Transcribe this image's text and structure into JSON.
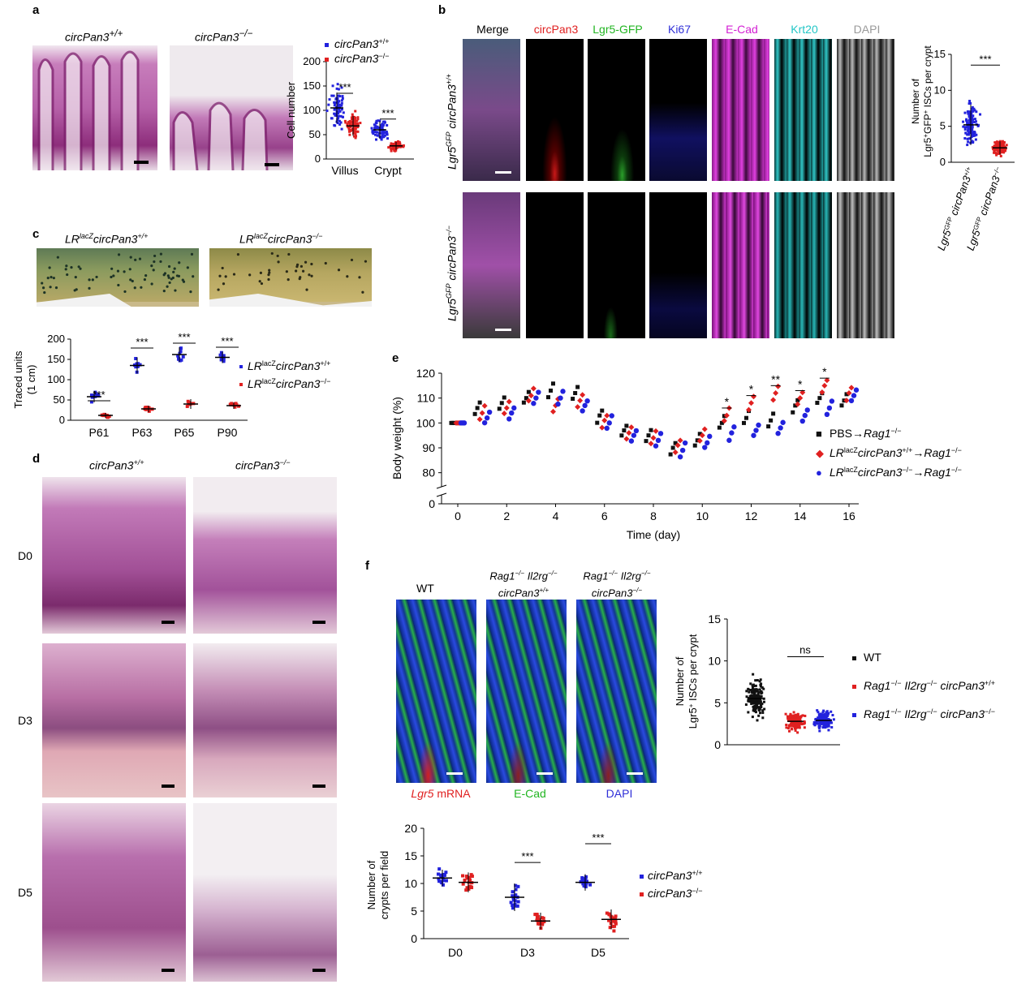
{
  "panels": {
    "a": {
      "label": "a",
      "genotype_wt": "circPan3",
      "genotype_wt_sup": "+/+",
      "genotype_ko": "circPan3",
      "genotype_ko_sup": "−/−"
    },
    "b": {
      "label": "b",
      "channels": [
        "Merge",
        "circPan3",
        "Lgr5-GFP",
        "Ki67",
        "E-Cad",
        "Krt20",
        "DAPI"
      ],
      "channel_colors": [
        "#000000",
        "#e02020",
        "#21b521",
        "#2f2fd8",
        "#d41fd4",
        "#23c6c6",
        "#9a9a9a"
      ],
      "row_wt": "Lgr5GFP circPan3+/+",
      "row_ko": "Lgr5GFP circPan3−/−",
      "row_prefix": "Lgr5",
      "row_prefix_sup": "GFP",
      "row_gene": "circPan3",
      "row_wt_sup": "+/+",
      "row_ko_sup": "−/−"
    },
    "c": {
      "label": "c",
      "genotype_prefix": "LR",
      "genotype_prefix_sup": "lacZ",
      "genotype_gene": "circPan3",
      "wt_sup": "+/+",
      "ko_sup": "−/−"
    },
    "d": {
      "label": "d",
      "col_wt": "circPan3",
      "col_wt_sup": "+/+",
      "col_ko": "circPan3",
      "col_ko_sup": "−/−",
      "rows": [
        "D0",
        "D3",
        "D5"
      ]
    },
    "e": {
      "label": "e"
    },
    "f": {
      "label": "f",
      "columns": [
        {
          "line1": "WT",
          "line2": ""
        },
        {
          "line1": "Rag1−/− Il2rg−/−",
          "line2": "circPan3+/+"
        },
        {
          "line1": "Rag1−/− Il2rg−/−",
          "line2": "circPan3−/−"
        }
      ],
      "col1_line1_a": "Rag1",
      "col1_line1_a_sup": "−/−",
      "col1_line1_b": " Il2rg",
      "col1_line1_b_sup": "−/−",
      "col1_line2": "circPan3",
      "col1_line2_sup": "+/+",
      "col2_line2": "circPan3",
      "col2_line2_sup": "−/−",
      "wt_label": "WT",
      "legend_under": [
        {
          "text": "Lgr5 mRNA",
          "gene": "Lgr5",
          "rest": " mRNA",
          "color": "#e02020"
        },
        {
          "text": "E-Cad",
          "color": "#21b521"
        },
        {
          "text": "DAPI",
          "color": "#2f2fd8"
        }
      ]
    }
  },
  "chart_data": [
    {
      "id": "a-chart",
      "type": "scatter",
      "title": "",
      "xlabel": "",
      "ylabel": "Cell number",
      "categories": [
        "Villus",
        "Crypt"
      ],
      "ylim": [
        0,
        200
      ],
      "yticks": [
        0,
        50,
        100,
        150,
        200
      ],
      "series": [
        {
          "name": "circPan3+/+",
          "color": "#2222dd",
          "means": [
            105,
            60
          ]
        },
        {
          "name": "circPan3−/−",
          "color": "#e02020",
          "means": [
            68,
            27
          ]
        }
      ],
      "legend": [
        {
          "text": "circPan3",
          "sup": "+/+",
          "color": "#2222dd"
        },
        {
          "text": "circPan3",
          "sup": "−/−",
          "color": "#e02020"
        }
      ],
      "annotations": [
        "***",
        "***"
      ]
    },
    {
      "id": "b-chart",
      "type": "scatter",
      "ylabel_line1": "Number of",
      "ylabel_line2": "Lgr5+GFP+ ISCs per crypt",
      "ylabel_l2_a": "Lgr5",
      "ylabel_l2_a_sup": "+",
      "ylabel_l2_b": "GFP",
      "ylabel_l2_b_sup": "+",
      "ylabel_l2_c": " ISCs per crypt",
      "ylim": [
        0,
        15
      ],
      "yticks": [
        0,
        5,
        10,
        15
      ],
      "categories": [
        "Lgr5GFP circPan3+/+",
        "Lgr5GFP circPan3−/−"
      ],
      "cat_prefix": "Lgr5",
      "cat_prefix_sup": "GFP",
      "cat_gene": "circPan3",
      "cat_wt_sup": "+/+",
      "cat_ko_sup": "−/−",
      "series": [
        {
          "name": "circPan3+/+",
          "color": "#2222dd",
          "mean": 5.2,
          "sd": 2.8
        },
        {
          "name": "circPan3−/−",
          "color": "#e02020",
          "mean": 2.0,
          "sd": 0.9
        }
      ],
      "annotations": [
        "***"
      ]
    },
    {
      "id": "c-chart",
      "type": "scatter",
      "ylabel_line1": "Traced units",
      "ylabel_line2": "(1 cm)",
      "categories": [
        "P61",
        "P63",
        "P65",
        "P90"
      ],
      "ylim": [
        0,
        200
      ],
      "yticks": [
        0,
        50,
        100,
        150,
        200
      ],
      "series": [
        {
          "name": "LRlacZ circPan3+/+",
          "color": "#2222dd",
          "means": [
            58,
            135,
            162,
            155
          ],
          "sd": [
            14,
            20,
            18,
            14
          ]
        },
        {
          "name": "LRlacZ circPan3−/−",
          "color": "#e02020",
          "means": [
            12,
            28,
            40,
            36
          ],
          "sd": [
            6,
            8,
            12,
            8
          ]
        }
      ],
      "legend": [
        {
          "pre": "LR",
          "pre_sup": "lacZ",
          "gene": "circPan3",
          "sup": "+/+",
          "color": "#2222dd"
        },
        {
          "pre": "LR",
          "pre_sup": "lacZ",
          "gene": "circPan3",
          "sup": "−/−",
          "color": "#e02020"
        }
      ],
      "annotations": [
        "***",
        "***",
        "***",
        "***"
      ]
    },
    {
      "id": "e-chart",
      "type": "scatter",
      "xlabel": "Time (day)",
      "ylabel": "Body weight (%)",
      "xticks": [
        0,
        2,
        4,
        6,
        8,
        10,
        12,
        14,
        16
      ],
      "xlim": [
        -0.8,
        16.8
      ],
      "yticks": [
        0,
        80,
        90,
        100,
        110,
        120
      ],
      "ylim_break": [
        0,
        75
      ],
      "series": [
        {
          "name": "PBS→Rag1−/−",
          "color": "#111111",
          "marker": "square",
          "days": [
            0,
            1,
            2,
            3,
            4,
            5,
            6,
            7,
            8,
            9,
            10,
            11,
            12,
            13,
            14,
            15,
            16
          ],
          "values": [
            100,
            106,
            108,
            110,
            113,
            112,
            103,
            97,
            95,
            90,
            93,
            100,
            102,
            101,
            107,
            110,
            109
          ]
        },
        {
          "name": "LRlacZ circPan3+/+→Rag1−/−",
          "color": "#e02020",
          "marker": "diamond",
          "days": [
            0,
            1,
            2,
            3,
            4,
            5,
            6,
            7,
            8,
            9,
            10,
            11,
            12,
            13,
            14,
            15,
            16
          ],
          "values": [
            100,
            104,
            106,
            111,
            107,
            109,
            101,
            96,
            94,
            91,
            95,
            103,
            108,
            112,
            110,
            115,
            112
          ]
        },
        {
          "name": "LRlacZ circPan3−/−→Rag1−/−",
          "color": "#2222dd",
          "marker": "circle",
          "days": [
            0,
            1,
            2,
            3,
            4,
            5,
            6,
            7,
            8,
            9,
            10,
            11,
            12,
            13,
            14,
            15,
            16
          ],
          "values": [
            100,
            102,
            104,
            110,
            110,
            107,
            100,
            95,
            93,
            89,
            92,
            96,
            97,
            98,
            103,
            106,
            111
          ]
        }
      ],
      "legend": [
        {
          "pre": "PBS→",
          "gene": "Rag1",
          "sup": "−/−",
          "color": "#111111",
          "marker": "■"
        },
        {
          "pre": "LR",
          "pre_sup": "lacZ",
          "gene": "circPan3",
          "sup": "+/+",
          "post": "→",
          "gene2": "Rag1",
          "sup2": "−/−",
          "color": "#e02020",
          "marker": "◆"
        },
        {
          "pre": "LR",
          "pre_sup": "lacZ",
          "gene": "circPan3",
          "sup": "−/−",
          "post": "→",
          "gene2": "Rag1",
          "sup2": "−/−",
          "color": "#2222dd",
          "marker": "●"
        }
      ],
      "significance": [
        {
          "day": 11,
          "label": "*"
        },
        {
          "day": 12,
          "label": "*"
        },
        {
          "day": 13,
          "label": "**"
        },
        {
          "day": 14,
          "label": "*"
        },
        {
          "day": 15,
          "label": "*"
        }
      ]
    },
    {
      "id": "f-chart",
      "type": "scatter",
      "ylabel_line1": "Number of",
      "ylabel_line2": "Lgr5+ ISCs per crypt",
      "ylabel_l2_a": "Lgr5",
      "ylabel_l2_a_sup": "+",
      "ylabel_l2_b": " ISCs per crypt",
      "ylim": [
        0,
        15
      ],
      "yticks": [
        0,
        5,
        10,
        15
      ],
      "series": [
        {
          "name": "WT",
          "color": "#111111",
          "mean": 5.5
        },
        {
          "name": "Rag1−/− Il2rg−/− circPan3+/+",
          "color": "#e02020",
          "mean": 2.8
        },
        {
          "name": "Rag1−/− Il2rg−/− circPan3−/−",
          "color": "#2222dd",
          "mean": 2.9
        }
      ],
      "legend": [
        {
          "plain": "WT",
          "color": "#111111"
        },
        {
          "g1": "Rag1",
          "s1": "−/−",
          "g2": " Il2rg",
          "s2": "−/−",
          "g3": " circPan3",
          "s3": "+/+",
          "color": "#e02020"
        },
        {
          "g1": "Rag1",
          "s1": "−/−",
          "g2": " Il2rg",
          "s2": "−/−",
          "g3": " circPan3",
          "s3": "−/−",
          "color": "#2222dd"
        }
      ],
      "annotations": [
        "ns"
      ]
    },
    {
      "id": "f2-chart",
      "type": "scatter",
      "ylabel_line1": "Number of",
      "ylabel_line2": "crypts per field",
      "categories": [
        "D0",
        "D3",
        "D5"
      ],
      "ylim": [
        0,
        20
      ],
      "yticks": [
        0,
        5,
        10,
        15,
        20
      ],
      "series": [
        {
          "name": "circPan3+/+",
          "color": "#2222dd",
          "means": [
            11,
            7.5,
            10.2
          ],
          "sd": [
            1.5,
            2.5,
            1.5
          ]
        },
        {
          "name": "circPan3−/−",
          "color": "#e02020",
          "means": [
            10.2,
            3.2,
            3.5
          ],
          "sd": [
            1.8,
            1.5,
            1.8
          ]
        }
      ],
      "legend": [
        {
          "text": "circPan3",
          "sup": "+/+",
          "color": "#2222dd"
        },
        {
          "text": "circPan3",
          "sup": "−/−",
          "color": "#e02020"
        }
      ],
      "annotations": [
        "***",
        "***"
      ]
    }
  ]
}
